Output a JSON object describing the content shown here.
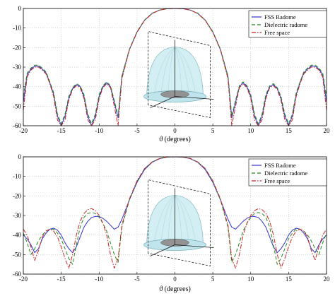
{
  "chart_data": [
    {
      "type": "line",
      "xlabel": "ϑ (degrees)",
      "xlim": [
        -20,
        20
      ],
      "ylim": [
        -60,
        0
      ],
      "xticks": [
        -20,
        -15,
        -10,
        -5,
        0,
        5,
        10,
        15,
        20
      ],
      "yticks": [
        0,
        -10,
        -20,
        -30,
        -40,
        -50,
        -60
      ],
      "grid": true,
      "legend_position": "top-right",
      "x": [
        -20,
        -19.5,
        -19,
        -18.5,
        -18,
        -17.5,
        -17,
        -16.5,
        -16,
        -15.5,
        -15,
        -14.5,
        -14,
        -13.5,
        -13,
        -12.5,
        -12,
        -11.5,
        -11,
        -10.5,
        -10,
        -9.5,
        -9,
        -8.5,
        -8,
        -7.5,
        -7,
        -6,
        -5,
        -4,
        -3,
        -2,
        -1,
        0,
        1,
        2,
        3,
        4,
        5,
        6,
        7,
        7.5,
        8,
        8.5,
        9,
        9.5,
        10,
        10.5,
        11,
        11.5,
        12,
        12.5,
        13,
        13.5,
        14,
        14.5,
        15,
        15.5,
        16,
        16.5,
        17,
        17.5,
        18,
        18.5,
        19,
        19.5,
        20
      ],
      "series": [
        {
          "name": "FSS Radome",
          "color": "#3333cc",
          "style": "solid",
          "values": [
            -48,
            -34,
            -31,
            -29.5,
            -29.5,
            -31,
            -33,
            -38,
            -44,
            -55,
            -60,
            -55,
            -46,
            -41,
            -39,
            -40,
            -45,
            -55,
            -60,
            -55,
            -45,
            -40,
            -38,
            -40,
            -48,
            -56,
            -35,
            -21,
            -12,
            -6,
            -2.5,
            -0.8,
            -0.1,
            0,
            -0.1,
            -0.8,
            -2.5,
            -6,
            -12,
            -21,
            -35,
            -56,
            -48,
            -40,
            -38,
            -40,
            -45,
            -55,
            -60,
            -55,
            -45,
            -40,
            -39,
            -41,
            -46,
            -55,
            -60,
            -55,
            -44,
            -38,
            -33,
            -31,
            -29.5,
            -29.5,
            -31,
            -34,
            -48
          ]
        },
        {
          "name": "Dielectric radome",
          "color": "#228822",
          "style": "dashed",
          "values": [
            -45,
            -33,
            -30.5,
            -29,
            -29,
            -30.5,
            -32.5,
            -37.5,
            -43,
            -54,
            -59,
            -54,
            -45,
            -40.5,
            -38.5,
            -39.5,
            -44,
            -54,
            -59,
            -54,
            -44,
            -39.5,
            -37.5,
            -39.5,
            -47,
            -55,
            -34.5,
            -20.8,
            -11.8,
            -5.9,
            -2.4,
            -0.8,
            -0.1,
            0,
            -0.1,
            -0.8,
            -2.4,
            -5.9,
            -11.8,
            -20.8,
            -34.5,
            -55,
            -47,
            -39.5,
            -37.5,
            -39.5,
            -44,
            -54,
            -59,
            -54,
            -44,
            -39.5,
            -38.5,
            -40.5,
            -45,
            -54,
            -59,
            -54,
            -43,
            -37.5,
            -32.5,
            -30.5,
            -29,
            -29,
            -30.5,
            -33,
            -45
          ]
        },
        {
          "name": "Free space",
          "color": "#cc2222",
          "style": "dashdot",
          "values": [
            -52,
            -35,
            -31.5,
            -30,
            -30,
            -31.5,
            -33.5,
            -38.5,
            -45,
            -57,
            -60,
            -57,
            -47,
            -41.5,
            -39.5,
            -40.5,
            -46,
            -57,
            -60,
            -57,
            -46,
            -40.5,
            -38.5,
            -40.5,
            -50,
            -60,
            -36,
            -21.2,
            -12.2,
            -6.1,
            -2.6,
            -0.8,
            -0.1,
            0,
            -0.1,
            -0.8,
            -2.6,
            -6.1,
            -12.2,
            -21.2,
            -36,
            -60,
            -50,
            -40.5,
            -38.5,
            -40.5,
            -46,
            -57,
            -60,
            -57,
            -46,
            -40.5,
            -39.5,
            -41.5,
            -47,
            -57,
            -60,
            -57,
            -45,
            -38.5,
            -33.5,
            -31.5,
            -30,
            -30,
            -31.5,
            -35,
            -52
          ]
        }
      ]
    },
    {
      "type": "line",
      "xlabel": "ϑ (degrees)",
      "xlim": [
        -20,
        20
      ],
      "ylim": [
        -60,
        0
      ],
      "xticks": [
        -20,
        -15,
        -10,
        -5,
        0,
        5,
        10,
        15,
        20
      ],
      "yticks": [
        0,
        -10,
        -20,
        -30,
        -40,
        -50,
        -60
      ],
      "grid": true,
      "legend_position": "top-right",
      "x": [
        -20,
        -19.5,
        -19,
        -18.5,
        -18,
        -17.5,
        -17,
        -16.5,
        -16,
        -15.5,
        -15,
        -14.5,
        -14,
        -13.5,
        -13,
        -12.5,
        -12,
        -11.5,
        -11,
        -10.5,
        -10,
        -9.5,
        -9,
        -8.5,
        -8,
        -7.5,
        -7,
        -6,
        -5,
        -4,
        -3,
        -2,
        -1,
        0,
        1,
        2,
        3,
        4,
        5,
        6,
        7,
        7.5,
        8,
        8.5,
        9,
        9.5,
        10,
        10.5,
        11,
        11.5,
        12,
        12.5,
        13,
        13.5,
        14,
        14.5,
        15,
        15.5,
        16,
        16.5,
        17,
        17.5,
        18,
        18.5,
        19,
        19.5,
        20
      ],
      "series": [
        {
          "name": "FSS Radome",
          "color": "#3333cc",
          "style": "solid",
          "values": [
            -40,
            -42,
            -45,
            -49,
            -47,
            -42,
            -39,
            -37,
            -36.5,
            -37.5,
            -40,
            -44,
            -47,
            -49,
            -46,
            -41,
            -36,
            -33,
            -31,
            -30.5,
            -30.5,
            -31.5,
            -33,
            -35,
            -37,
            -36,
            -32,
            -22,
            -13,
            -6.5,
            -2.8,
            -0.9,
            -0.1,
            0,
            -0.1,
            -0.9,
            -2.8,
            -6.5,
            -13,
            -22,
            -32,
            -36,
            -37,
            -35,
            -33,
            -31.5,
            -30.5,
            -30.5,
            -31,
            -33,
            -36,
            -41,
            -46,
            -49,
            -47,
            -44,
            -40,
            -37.5,
            -36.5,
            -37,
            -39,
            -42,
            -47,
            -49,
            -45,
            -42,
            -40
          ]
        },
        {
          "name": "Dielectric radome",
          "color": "#228822",
          "style": "dashed",
          "values": [
            -39,
            -44,
            -50,
            -47,
            -43,
            -40,
            -38,
            -37,
            -37,
            -39,
            -42,
            -47,
            -52,
            -55,
            -45,
            -36,
            -31,
            -29,
            -28.5,
            -29,
            -31,
            -34,
            -38,
            -44,
            -50,
            -54,
            -36,
            -22,
            -12.5,
            -6,
            -2.6,
            -0.8,
            -0.1,
            0,
            -0.1,
            -0.8,
            -2.6,
            -6,
            -12.5,
            -22,
            -36,
            -54,
            -50,
            -44,
            -38,
            -34,
            -31,
            -29,
            -28.5,
            -29,
            -31,
            -36,
            -45,
            -55,
            -52,
            -47,
            -42,
            -39,
            -37,
            -37,
            -38,
            -40,
            -43,
            -47,
            -50,
            -44,
            -39
          ]
        },
        {
          "name": "Free space",
          "color": "#cc2222",
          "style": "dashdot",
          "values": [
            -37,
            -40,
            -46,
            -53,
            -48,
            -41,
            -38,
            -37,
            -38,
            -41,
            -46,
            -52,
            -57,
            -50,
            -40,
            -33,
            -29,
            -27,
            -26.5,
            -27.5,
            -30,
            -34,
            -40,
            -50,
            -57,
            -52,
            -35,
            -21.5,
            -12.2,
            -6,
            -2.6,
            -0.8,
            -0.1,
            0,
            -0.1,
            -0.8,
            -2.6,
            -6,
            -12.2,
            -21.5,
            -35,
            -52,
            -57,
            -50,
            -40,
            -34,
            -30,
            -27.5,
            -26.5,
            -27,
            -29,
            -33,
            -40,
            -50,
            -57,
            -52,
            -46,
            -41,
            -38,
            -37,
            -38,
            -41,
            -48,
            -53,
            -46,
            -40,
            -37
          ]
        }
      ]
    }
  ]
}
